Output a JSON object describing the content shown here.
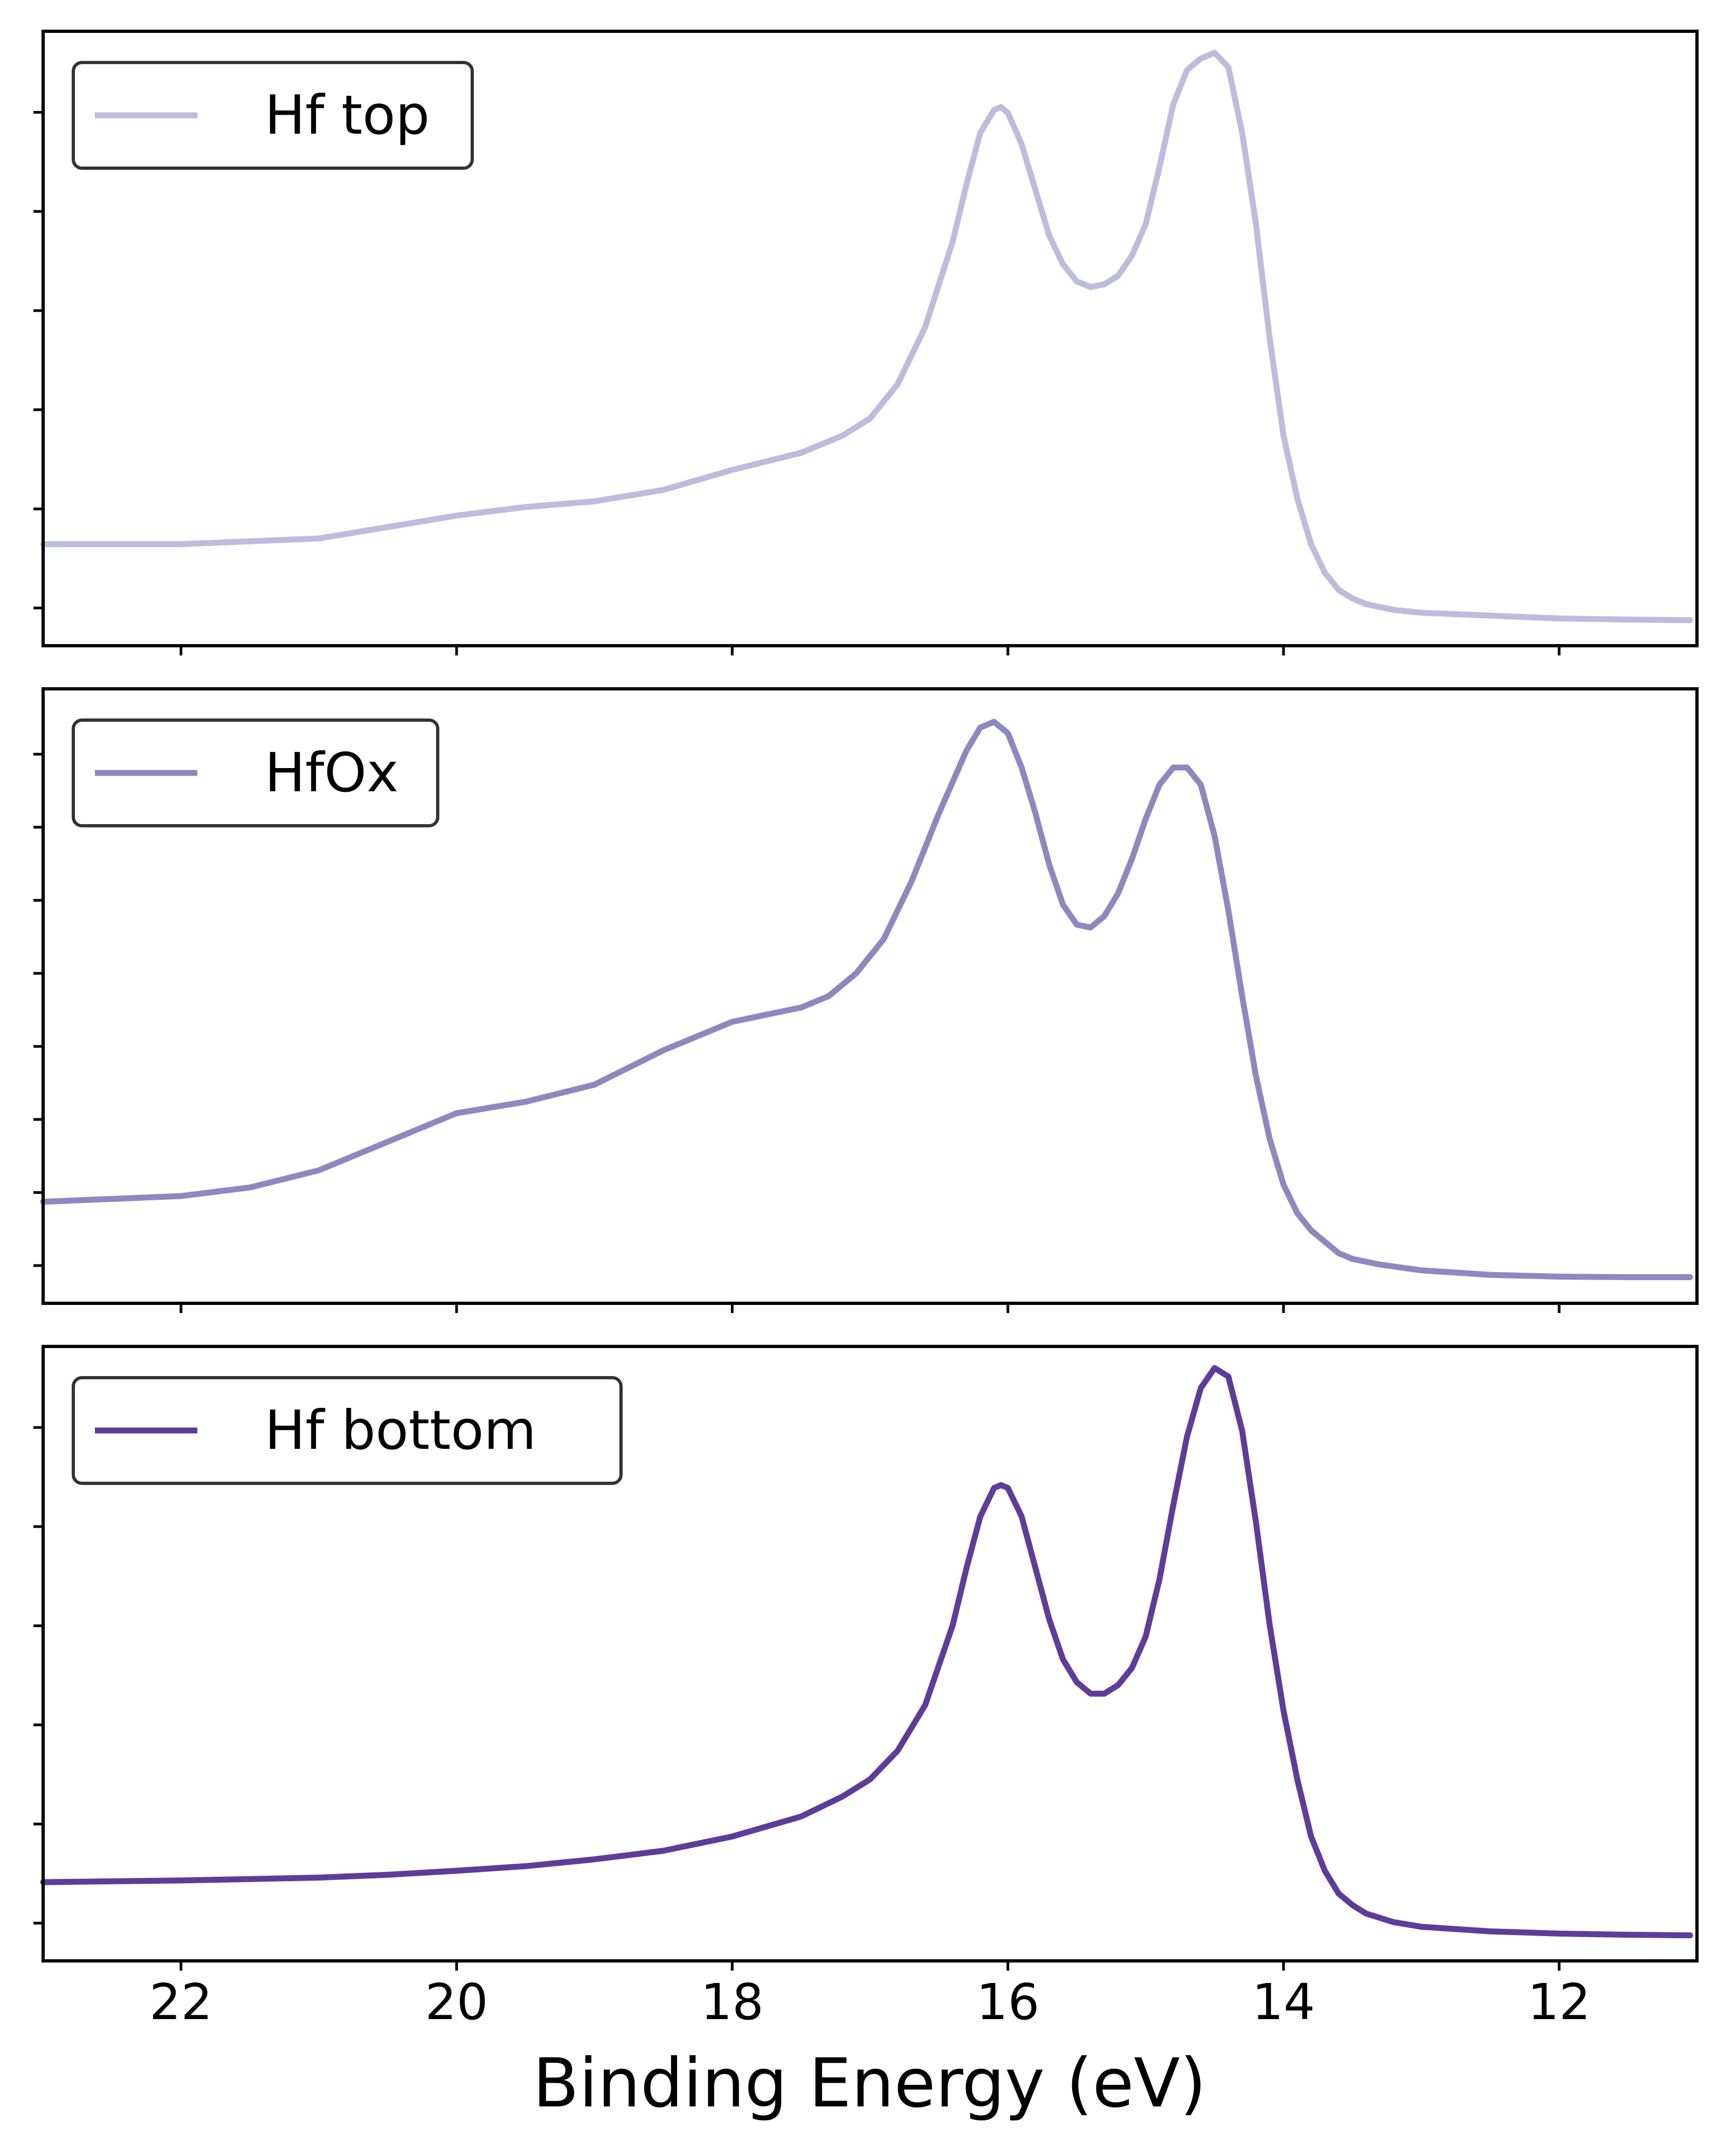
{
  "chart_data": [
    {
      "type": "line",
      "title": "",
      "xlabel": "",
      "ylabel": "",
      "xlim": [
        23,
        11
      ],
      "x_inverted": true,
      "yticks_labeled": false,
      "legend": "top-left",
      "series": [
        {
          "name": "Hf top",
          "color": "#bcbddc",
          "x": [
            23.0,
            22.0,
            21.0,
            20.5,
            20.0,
            19.5,
            19.0,
            18.5,
            18.0,
            17.5,
            17.2,
            17.0,
            16.8,
            16.6,
            16.4,
            16.3,
            16.2,
            16.1,
            16.05,
            16.0,
            15.9,
            15.8,
            15.7,
            15.6,
            15.5,
            15.4,
            15.3,
            15.2,
            15.1,
            15.0,
            14.9,
            14.8,
            14.7,
            14.6,
            14.5,
            14.4,
            14.3,
            14.2,
            14.1,
            14.0,
            13.9,
            13.8,
            13.7,
            13.6,
            13.5,
            13.4,
            13.2,
            13.0,
            12.5,
            12.0,
            11.5,
            11.05
          ],
          "y": [
            0.14,
            0.14,
            0.15,
            0.17,
            0.19,
            0.205,
            0.215,
            0.235,
            0.27,
            0.3,
            0.33,
            0.36,
            0.42,
            0.52,
            0.67,
            0.77,
            0.86,
            0.9,
            0.905,
            0.895,
            0.84,
            0.76,
            0.68,
            0.63,
            0.6,
            0.59,
            0.595,
            0.61,
            0.645,
            0.7,
            0.8,
            0.91,
            0.97,
            0.99,
            1.0,
            0.975,
            0.86,
            0.7,
            0.5,
            0.33,
            0.22,
            0.14,
            0.09,
            0.06,
            0.045,
            0.035,
            0.025,
            0.02,
            0.015,
            0.01,
            0.008,
            0.007
          ]
        }
      ]
    },
    {
      "type": "line",
      "title": "",
      "xlabel": "",
      "ylabel": "",
      "xlim": [
        23,
        11
      ],
      "x_inverted": true,
      "yticks_labeled": false,
      "legend": "top-left",
      "series": [
        {
          "name": "HfOx",
          "color": "#8c89c0",
          "x": [
            23.0,
            22.0,
            21.5,
            21.0,
            20.5,
            20.0,
            19.5,
            19.0,
            18.5,
            18.0,
            17.7,
            17.5,
            17.3,
            17.1,
            16.9,
            16.7,
            16.5,
            16.3,
            16.2,
            16.1,
            16.0,
            15.9,
            15.8,
            15.7,
            15.6,
            15.5,
            15.4,
            15.3,
            15.2,
            15.1,
            15.0,
            14.9,
            14.8,
            14.7,
            14.6,
            14.5,
            14.4,
            14.3,
            14.2,
            14.1,
            14.0,
            13.9,
            13.8,
            13.7,
            13.6,
            13.5,
            13.3,
            13.0,
            12.5,
            12.0,
            11.5,
            11.05
          ],
          "y": [
            0.14,
            0.15,
            0.165,
            0.195,
            0.245,
            0.295,
            0.315,
            0.345,
            0.405,
            0.455,
            0.47,
            0.48,
            0.5,
            0.54,
            0.6,
            0.7,
            0.82,
            0.93,
            0.97,
            0.98,
            0.96,
            0.9,
            0.82,
            0.73,
            0.66,
            0.625,
            0.62,
            0.64,
            0.68,
            0.74,
            0.81,
            0.87,
            0.9,
            0.9,
            0.87,
            0.78,
            0.65,
            0.5,
            0.36,
            0.25,
            0.17,
            0.12,
            0.09,
            0.07,
            0.05,
            0.04,
            0.03,
            0.02,
            0.012,
            0.009,
            0.008,
            0.008
          ]
        }
      ]
    },
    {
      "type": "line",
      "title": "",
      "xlabel": "Binding Energy (eV)",
      "ylabel": "",
      "xlim": [
        23,
        11
      ],
      "x_inverted": true,
      "xticks": [
        22,
        20,
        18,
        16,
        14,
        12
      ],
      "yticks_labeled": false,
      "legend": "top-left",
      "series": [
        {
          "name": "Hf bottom",
          "color": "#5e3c99",
          "x": [
            23.0,
            22.0,
            21.0,
            20.5,
            20.0,
            19.5,
            19.0,
            18.5,
            18.0,
            17.5,
            17.2,
            17.0,
            16.8,
            16.6,
            16.4,
            16.3,
            16.2,
            16.1,
            16.05,
            16.0,
            15.9,
            15.8,
            15.7,
            15.6,
            15.5,
            15.4,
            15.3,
            15.2,
            15.1,
            15.0,
            14.9,
            14.8,
            14.7,
            14.6,
            14.5,
            14.4,
            14.3,
            14.2,
            14.1,
            14.0,
            13.9,
            13.8,
            13.7,
            13.6,
            13.5,
            13.4,
            13.2,
            13.0,
            12.5,
            12.0,
            11.5,
            11.05
          ],
          "y": [
            0.1,
            0.103,
            0.108,
            0.113,
            0.12,
            0.128,
            0.14,
            0.155,
            0.18,
            0.215,
            0.25,
            0.28,
            0.33,
            0.41,
            0.55,
            0.65,
            0.74,
            0.79,
            0.795,
            0.79,
            0.74,
            0.65,
            0.56,
            0.49,
            0.45,
            0.43,
            0.43,
            0.445,
            0.475,
            0.53,
            0.63,
            0.76,
            0.88,
            0.965,
            1.0,
            0.985,
            0.89,
            0.73,
            0.55,
            0.4,
            0.28,
            0.18,
            0.12,
            0.08,
            0.06,
            0.045,
            0.03,
            0.022,
            0.014,
            0.01,
            0.008,
            0.007
          ]
        }
      ]
    }
  ]
}
